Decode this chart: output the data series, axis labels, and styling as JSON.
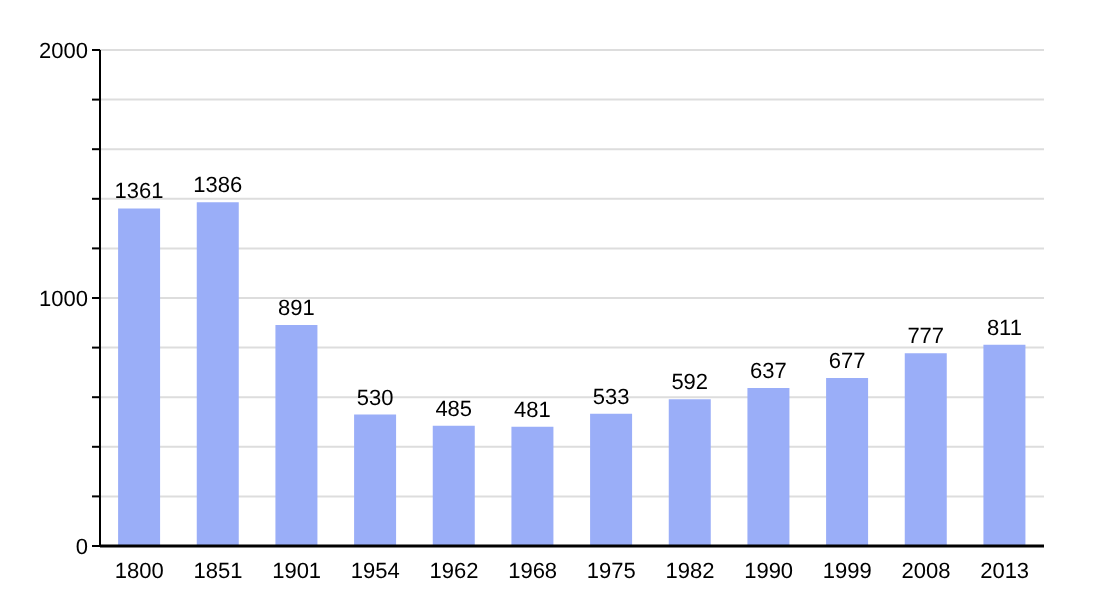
{
  "chart_data": {
    "type": "bar",
    "categories": [
      "1800",
      "1851",
      "1901",
      "1954",
      "1962",
      "1968",
      "1975",
      "1982",
      "1990",
      "1999",
      "2008",
      "2013"
    ],
    "values": [
      1361,
      1386,
      891,
      530,
      485,
      481,
      533,
      592,
      637,
      677,
      777,
      811
    ],
    "color": "#9aaef8",
    "ylim": [
      0,
      2000
    ],
    "yticks": [
      0,
      {
        "value": 200,
        "label": null
      },
      {
        "value": 400,
        "label": null
      },
      {
        "value": 600,
        "label": null
      },
      {
        "value": 800,
        "label": null
      },
      1000,
      {
        "value": 1200,
        "label": null
      },
      {
        "value": 1400,
        "label": null
      },
      {
        "value": 1600,
        "label": null
      },
      {
        "value": 1800,
        "label": null
      },
      2000
    ],
    "grid": "y",
    "data_labels": true,
    "legend": false
  }
}
